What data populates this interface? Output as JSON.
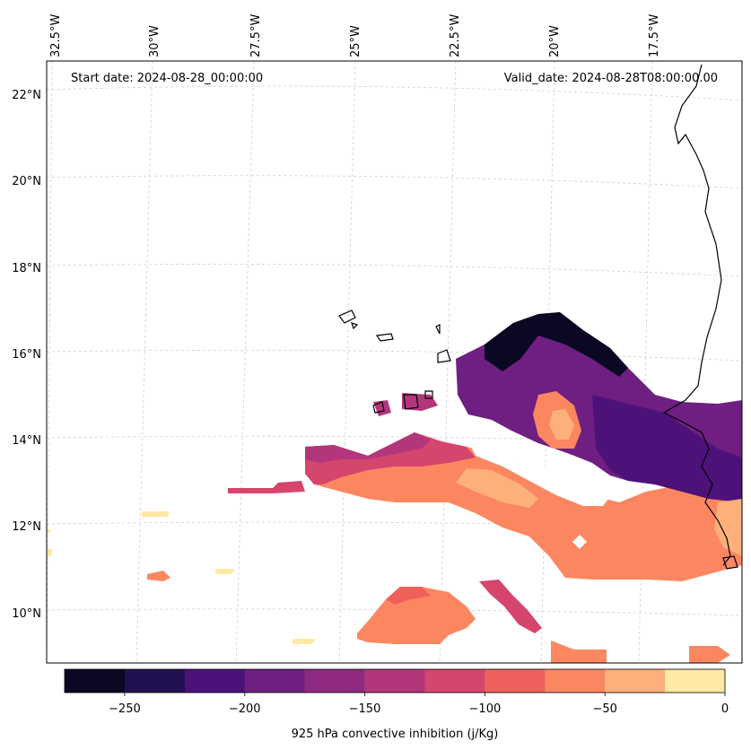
{
  "header": {
    "start_date": "Start date: 2024-08-28_00:00:00",
    "valid_date": "Valid_date: 2024-08-28T08:00:00.00"
  },
  "lon_labels": [
    "32.5°W",
    "30°W",
    "27.5°W",
    "25°W",
    "22.5°W",
    "20°W",
    "17.5°W"
  ],
  "lat_labels": [
    "22°N",
    "20°N",
    "18°N",
    "16°N",
    "14°N",
    "12°N",
    "10°N"
  ],
  "colorbar": {
    "label": "925 hPa convective inhibition (j/Kg)",
    "ticks": [
      "−250",
      "−200",
      "−150",
      "−100",
      "−50",
      "0"
    ],
    "levels": [
      -275,
      -250,
      -225,
      -200,
      -175,
      -150,
      -125,
      -100,
      -75,
      -50,
      -25,
      0
    ],
    "colors": [
      "#0a0822",
      "#221150",
      "#4d127a",
      "#6e1f81",
      "#8f2a80",
      "#b3367a",
      "#d6456c",
      "#ef605c",
      "#fb8761",
      "#feb07a",
      "#fee9a5"
    ]
  },
  "colors": {
    "grid": "#cfcfcf",
    "coast": "#000000"
  }
}
